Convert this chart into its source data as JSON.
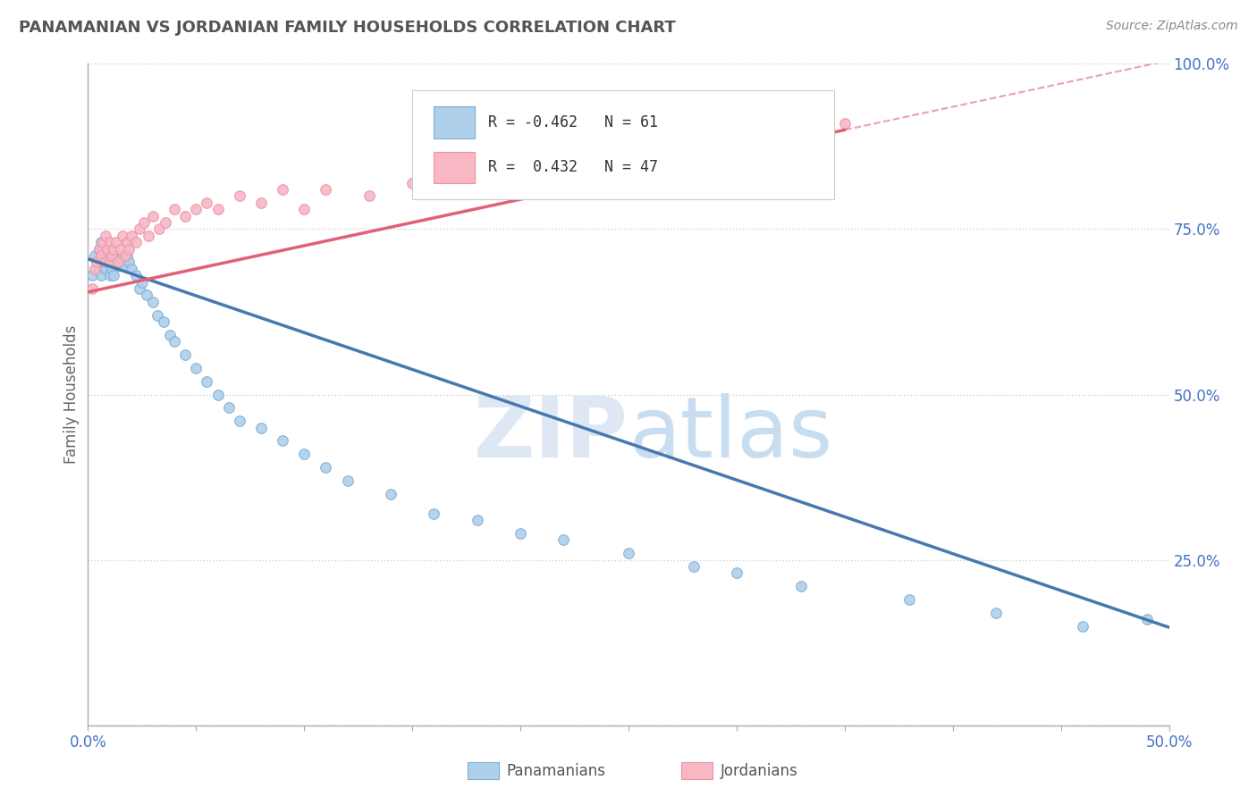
{
  "title": "PANAMANIAN VS JORDANIAN FAMILY HOUSEHOLDS CORRELATION CHART",
  "source_text": "Source: ZipAtlas.com",
  "ylabel": "Family Households",
  "xlabel_label_pan": "Panamanians",
  "xlabel_label_jor": "Jordanians",
  "xlim": [
    0.0,
    0.5
  ],
  "ylim": [
    0.0,
    1.0
  ],
  "pan_R": -0.462,
  "pan_N": 61,
  "jor_R": 0.432,
  "jor_N": 47,
  "pan_color": "#afd0ea",
  "jor_color": "#f7b8c4",
  "pan_edge_color": "#7aaed4",
  "jor_edge_color": "#ee90a8",
  "pan_line_color": "#4878b0",
  "jor_line_color": "#e0607a",
  "tick_color": "#4472c4",
  "watermark_color": "#dde8f4",
  "background_color": "#ffffff",
  "grid_color": "#d0d0d0",
  "pan_scatter_x": [
    0.002,
    0.003,
    0.004,
    0.005,
    0.005,
    0.006,
    0.006,
    0.007,
    0.007,
    0.008,
    0.008,
    0.009,
    0.009,
    0.01,
    0.01,
    0.011,
    0.011,
    0.012,
    0.012,
    0.013,
    0.013,
    0.014,
    0.015,
    0.016,
    0.017,
    0.018,
    0.019,
    0.02,
    0.022,
    0.024,
    0.025,
    0.027,
    0.03,
    0.032,
    0.035,
    0.038,
    0.04,
    0.045,
    0.05,
    0.055,
    0.06,
    0.065,
    0.07,
    0.08,
    0.09,
    0.1,
    0.11,
    0.12,
    0.14,
    0.16,
    0.18,
    0.2,
    0.22,
    0.25,
    0.28,
    0.3,
    0.33,
    0.38,
    0.42,
    0.46,
    0.49
  ],
  "pan_scatter_y": [
    0.68,
    0.71,
    0.7,
    0.72,
    0.69,
    0.73,
    0.68,
    0.7,
    0.72,
    0.71,
    0.69,
    0.7,
    0.72,
    0.68,
    0.71,
    0.7,
    0.69,
    0.72,
    0.68,
    0.7,
    0.71,
    0.695,
    0.705,
    0.7,
    0.695,
    0.71,
    0.7,
    0.69,
    0.68,
    0.66,
    0.67,
    0.65,
    0.64,
    0.62,
    0.61,
    0.59,
    0.58,
    0.56,
    0.54,
    0.52,
    0.5,
    0.48,
    0.46,
    0.45,
    0.43,
    0.41,
    0.39,
    0.37,
    0.35,
    0.32,
    0.31,
    0.29,
    0.28,
    0.26,
    0.24,
    0.23,
    0.21,
    0.19,
    0.17,
    0.15,
    0.16
  ],
  "jor_scatter_x": [
    0.002,
    0.003,
    0.004,
    0.005,
    0.006,
    0.007,
    0.008,
    0.008,
    0.009,
    0.01,
    0.01,
    0.011,
    0.012,
    0.013,
    0.014,
    0.015,
    0.016,
    0.017,
    0.018,
    0.019,
    0.02,
    0.022,
    0.024,
    0.026,
    0.028,
    0.03,
    0.033,
    0.036,
    0.04,
    0.045,
    0.05,
    0.055,
    0.06,
    0.07,
    0.08,
    0.09,
    0.1,
    0.11,
    0.13,
    0.15,
    0.17,
    0.2,
    0.23,
    0.26,
    0.29,
    0.32,
    0.35
  ],
  "jor_scatter_y": [
    0.66,
    0.69,
    0.7,
    0.72,
    0.71,
    0.73,
    0.7,
    0.74,
    0.72,
    0.7,
    0.73,
    0.71,
    0.72,
    0.73,
    0.7,
    0.72,
    0.74,
    0.71,
    0.73,
    0.72,
    0.74,
    0.73,
    0.75,
    0.76,
    0.74,
    0.77,
    0.75,
    0.76,
    0.78,
    0.77,
    0.78,
    0.79,
    0.78,
    0.8,
    0.79,
    0.81,
    0.78,
    0.81,
    0.8,
    0.82,
    0.84,
    0.86,
    0.83,
    0.85,
    0.87,
    0.88,
    0.91
  ],
  "pan_line_x0": 0.0,
  "pan_line_y0": 0.705,
  "pan_line_x1": 0.5,
  "pan_line_y1": 0.148,
  "jor_line_x0": 0.0,
  "jor_line_y0": 0.655,
  "jor_line_x1": 0.35,
  "jor_line_y1": 0.9
}
